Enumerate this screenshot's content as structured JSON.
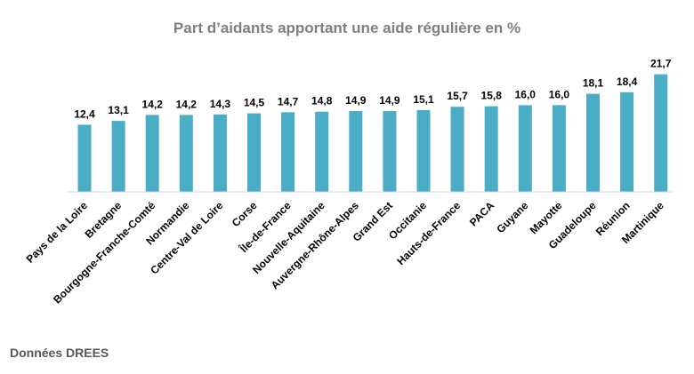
{
  "chart_data": {
    "type": "bar",
    "title": "Part d’aidants apportant une aide régulière en %",
    "xlabel": "",
    "ylabel": "",
    "ylim": [
      0,
      22
    ],
    "grid": false,
    "legend": "none",
    "categories": [
      "Pays de la Loire",
      "Bretagne",
      "Bourgogne-Franche-Comté",
      "Normandie",
      "Centre-Val de Loire",
      "Corse",
      "Île-de-France",
      "Nouvelle-Aquitaine",
      "Auvergne-Rhône-Alpes",
      "Grand Est",
      "Occitanie",
      "Hauts-de-France",
      "PACA",
      "Guyane",
      "Mayotte",
      "Guadeloupe",
      "Réunion",
      "Martinique"
    ],
    "values": [
      12.4,
      13.1,
      14.2,
      14.2,
      14.3,
      14.5,
      14.7,
      14.8,
      14.9,
      14.9,
      15.1,
      15.7,
      15.8,
      16.0,
      16.0,
      18.1,
      18.4,
      21.7
    ],
    "value_labels": [
      "12,4",
      "13,1",
      "14,2",
      "14,2",
      "14,3",
      "14,5",
      "14,7",
      "14,8",
      "14,9",
      "14,9",
      "15,1",
      "15,7",
      "15,8",
      "16,0",
      "16,0",
      "18,1",
      "18,4",
      "21,7"
    ],
    "bar_color": "#4bacc6",
    "axis_color": "#d9d9d9"
  },
  "source": "Données DREES"
}
